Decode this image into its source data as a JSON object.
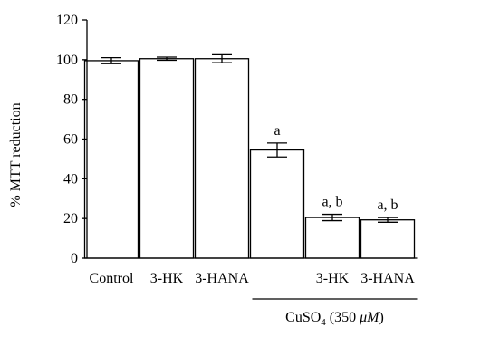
{
  "chart_data": {
    "type": "bar",
    "ylabel": "% MTT reduction",
    "ylim": [
      0,
      120
    ],
    "yticks": [
      0,
      20,
      40,
      60,
      80,
      100,
      120
    ],
    "categories": [
      "Control",
      "3-HK",
      "3-HANA",
      "",
      "3-HK",
      "3-HANA"
    ],
    "values": [
      99.5,
      100.5,
      100.5,
      54.5,
      20.5,
      19.3
    ],
    "errors": [
      1.5,
      0.8,
      2.0,
      3.5,
      1.6,
      1.2
    ],
    "annotations": [
      "",
      "",
      "",
      "a",
      "a, b",
      "a, b"
    ],
    "group_label": {
      "text_main": "CuSO",
      "text_sub": "4",
      "text_open": " (350 ",
      "text_unit": "μM",
      "text_close": ")",
      "spans_categories": [
        3,
        5
      ]
    },
    "bar_fill": "#ffffff",
    "bar_stroke": "#000000",
    "grid": false
  }
}
